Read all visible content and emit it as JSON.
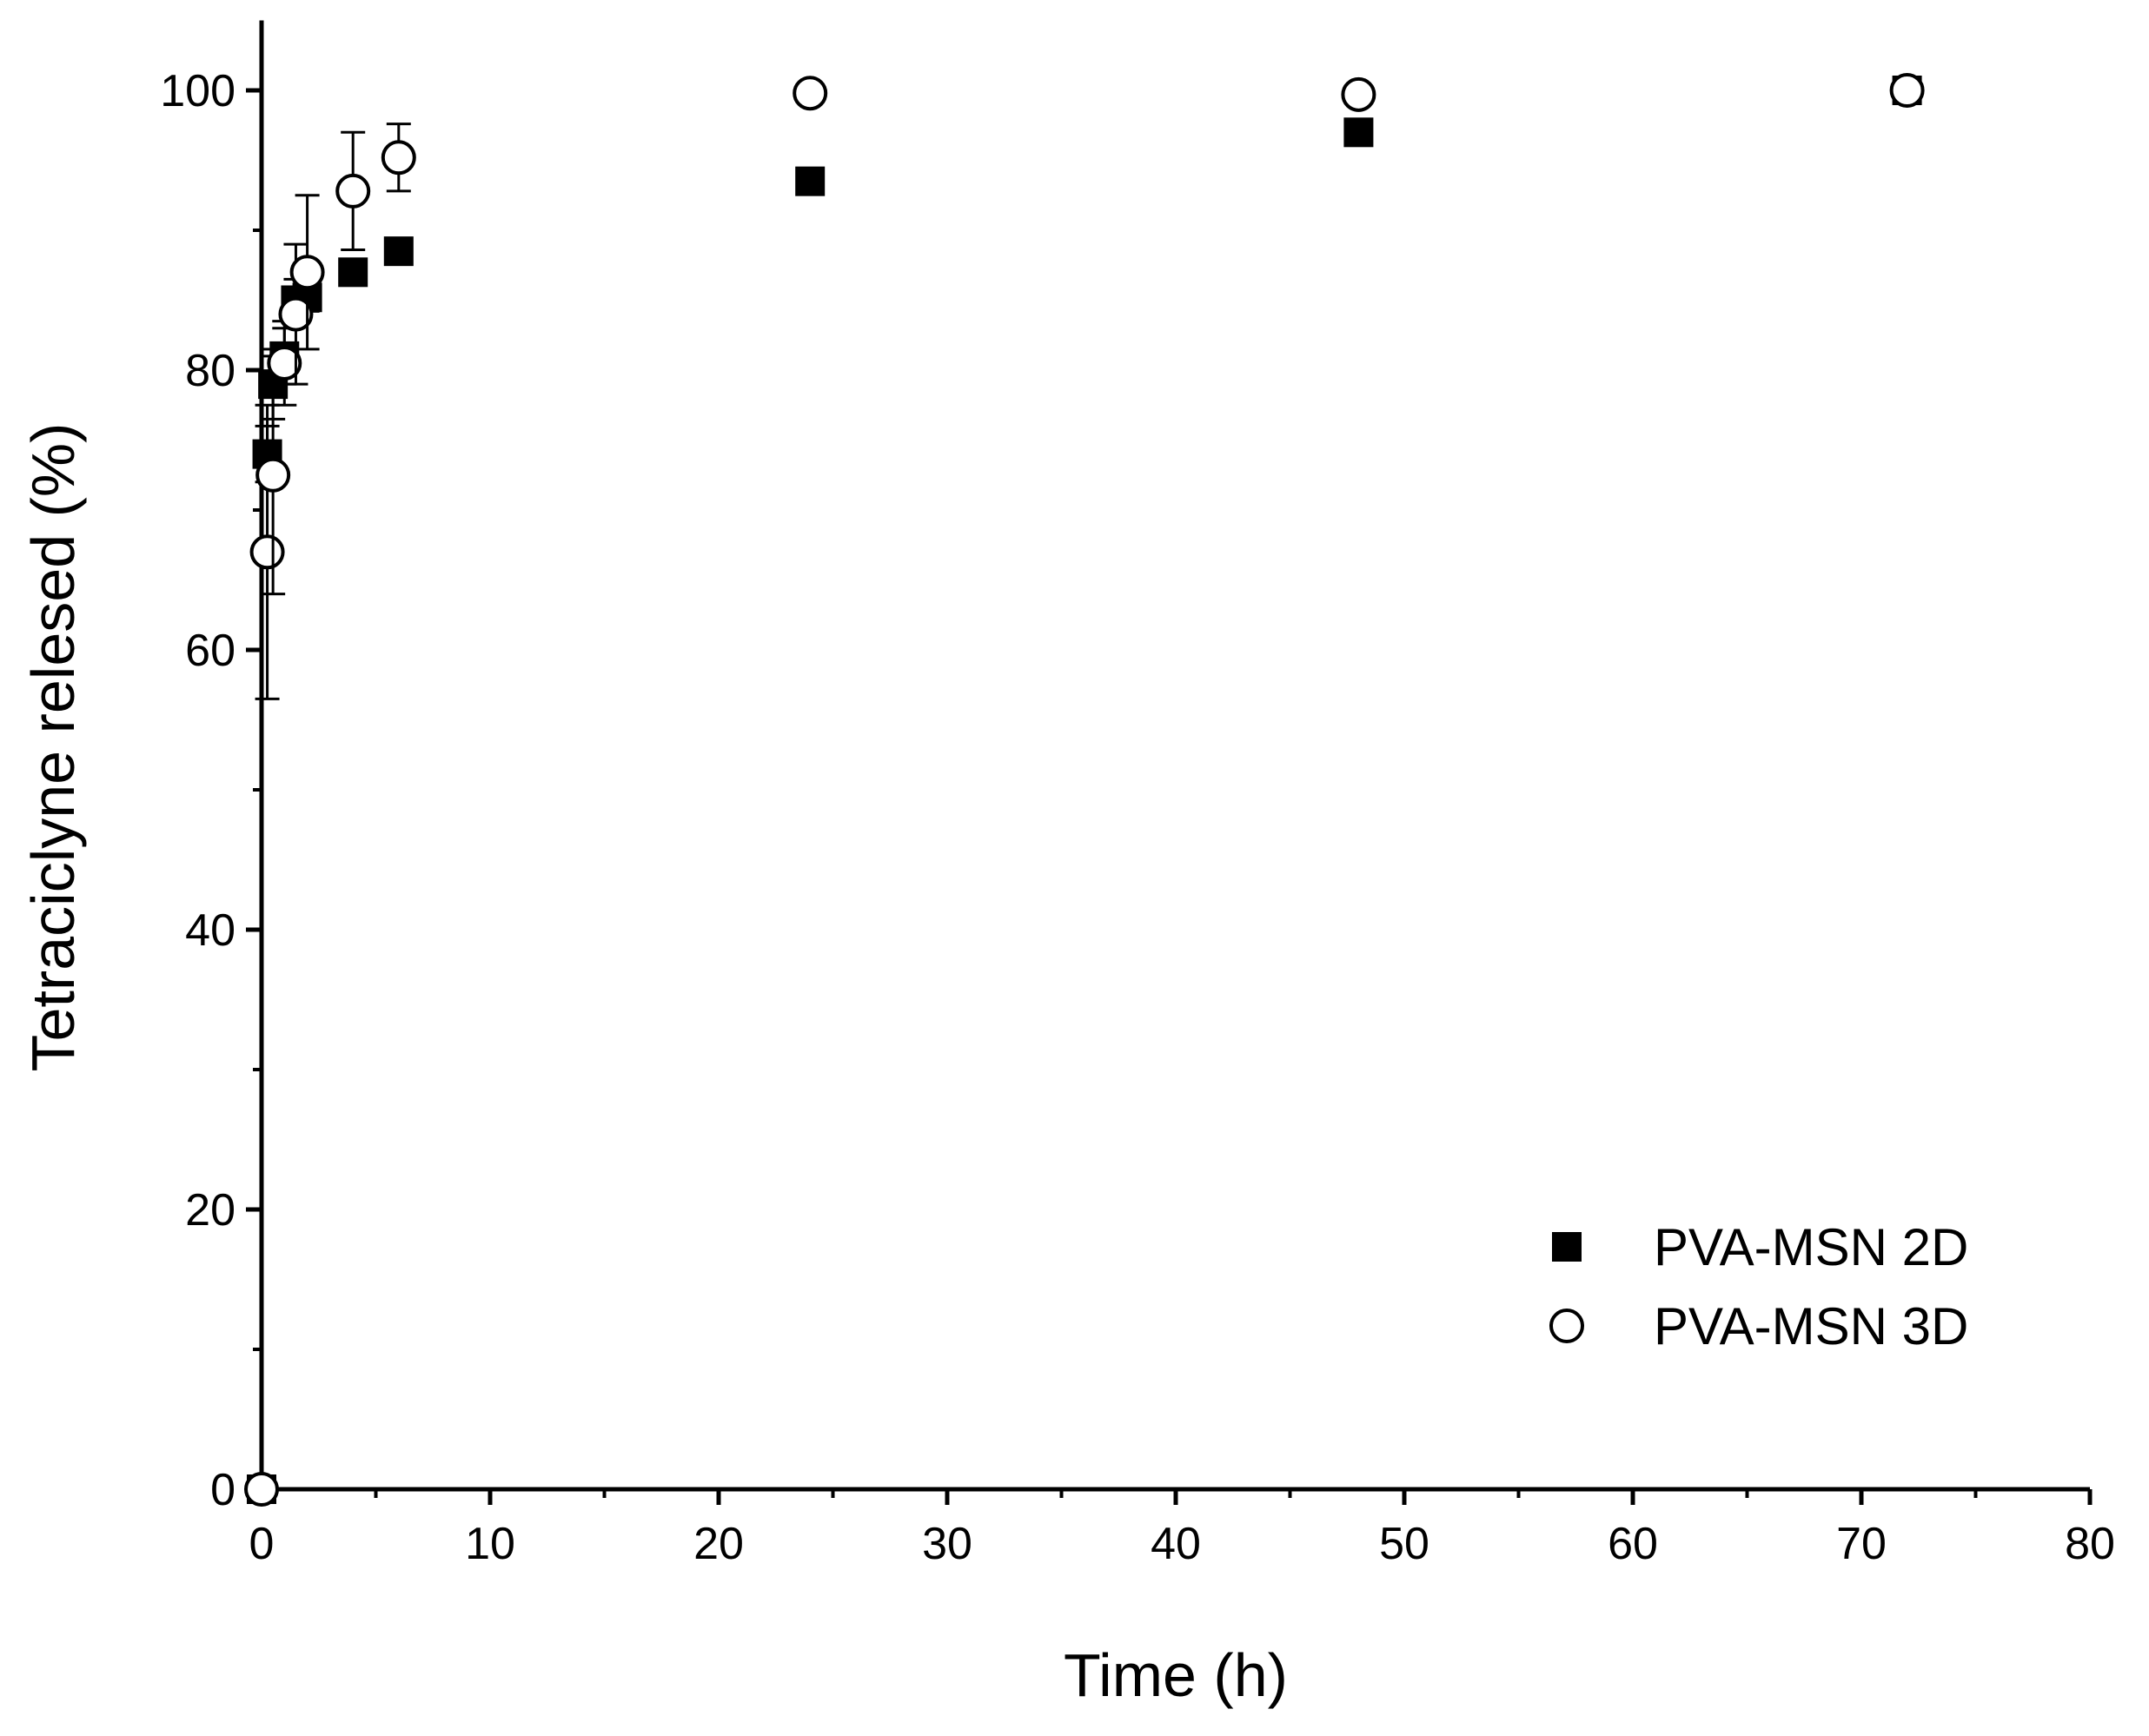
{
  "chart_data": {
    "type": "scatter",
    "title": "",
    "xlabel": "Time (h)",
    "ylabel": "Tetraciclyne relesed (%)",
    "xlim": [
      0,
      80
    ],
    "ylim": [
      0,
      105
    ],
    "xticks": [
      0,
      10,
      20,
      30,
      40,
      50,
      60,
      70,
      80
    ],
    "yticks": [
      0,
      20,
      40,
      60,
      80,
      100
    ],
    "grid": false,
    "legend": "bottom-right",
    "series": [
      {
        "name": "PVA-MSN 2D",
        "marker": "filled-square",
        "color": "#000000",
        "x": [
          0,
          0.25,
          0.5,
          1,
          1.5,
          2,
          4,
          6,
          24,
          48,
          72
        ],
        "y": [
          0,
          74,
          79,
          81,
          85,
          85.2,
          87,
          88.5,
          93.5,
          97,
          100
        ],
        "error": [
          0,
          2,
          2.5,
          2,
          1.5,
          1,
          0.5,
          0.5,
          0.5,
          0.5,
          0.3
        ]
      },
      {
        "name": "PVA-MSN 3D",
        "marker": "open-circle",
        "color": "#000000",
        "x": [
          0,
          0.25,
          0.5,
          1,
          1.5,
          2,
          4,
          6,
          24,
          48,
          72
        ],
        "y": [
          0,
          67,
          72.5,
          80.5,
          84,
          87,
          92.8,
          95.2,
          99.8,
          99.7,
          100
        ],
        "error": [
          0,
          10.5,
          8.5,
          3,
          5,
          5.5,
          4.2,
          2.4,
          0.5,
          0.8,
          0.4
        ]
      }
    ]
  }
}
